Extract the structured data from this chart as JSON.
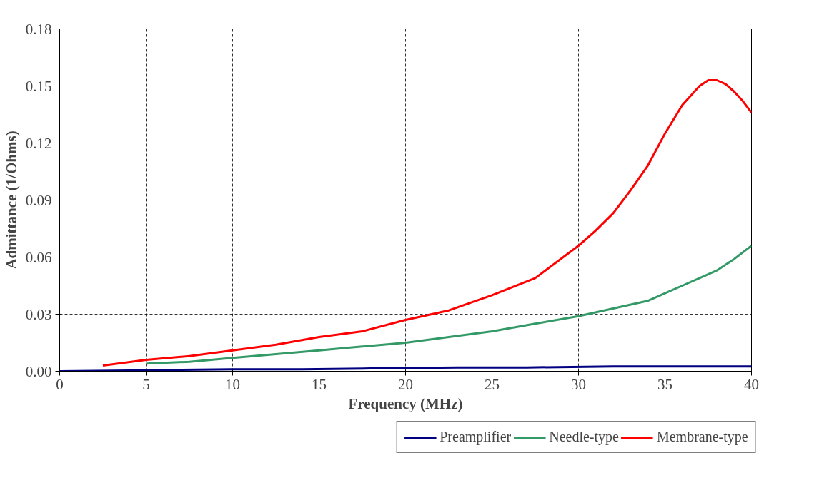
{
  "chart_data": {
    "type": "line",
    "xlabel": "Frequency (MHz)",
    "ylabel": "Admittance (1/Ohms)",
    "xlim": [
      0,
      40
    ],
    "xticks": [
      0,
      5,
      10,
      15,
      20,
      25,
      30,
      35,
      40
    ],
    "ylim": [
      0,
      0.18
    ],
    "yticks": [
      {
        "value": 0,
        "label": "0.00"
      },
      {
        "value": 0.03,
        "label": "0.03"
      },
      {
        "value": 0.06,
        "label": "0.06"
      },
      {
        "value": 0.09,
        "label": "0.09"
      },
      {
        "value": 0.12,
        "label": "0.12"
      },
      {
        "value": 0.15,
        "label": "0.15"
      },
      {
        "value": 0.18,
        "label": "0.18"
      }
    ],
    "grid": true,
    "legend": "bottom",
    "marker": "none",
    "line_style": "solid",
    "series": [
      {
        "name": "Preamplifier",
        "color": "#000080",
        "x": [
          0,
          5,
          10,
          14,
          18,
          23,
          27,
          32,
          36,
          40
        ],
        "values": [
          0,
          0.0005,
          0.001,
          0.001,
          0.0015,
          0.002,
          0.002,
          0.0025,
          0.0025,
          0.0025
        ]
      },
      {
        "name": "Needle-type",
        "color": "#339966",
        "x": [
          5,
          7.5,
          10,
          12.5,
          15,
          17.5,
          20,
          22.5,
          25,
          27.5,
          30,
          32,
          34,
          35,
          36,
          37,
          38,
          39,
          40
        ],
        "values": [
          0.004,
          0.005,
          0.007,
          0.009,
          0.011,
          0.013,
          0.015,
          0.018,
          0.021,
          0.025,
          0.029,
          0.033,
          0.037,
          0.041,
          0.045,
          0.049,
          0.053,
          0.059,
          0.066
        ]
      },
      {
        "name": "Membrane-type",
        "color": "#ff0000",
        "x": [
          2.5,
          5,
          7.5,
          10,
          12.5,
          15,
          17.5,
          20,
          22.5,
          25,
          27.5,
          30,
          31,
          32,
          33,
          34,
          35,
          36,
          37,
          37.5,
          38,
          38.5,
          39,
          39.5,
          40
        ],
        "values": [
          0.003,
          0.006,
          0.008,
          0.011,
          0.014,
          0.018,
          0.021,
          0.027,
          0.032,
          0.04,
          0.049,
          0.066,
          0.074,
          0.083,
          0.095,
          0.108,
          0.125,
          0.14,
          0.15,
          0.153,
          0.153,
          0.151,
          0.147,
          0.142,
          0.136
        ]
      }
    ]
  }
}
